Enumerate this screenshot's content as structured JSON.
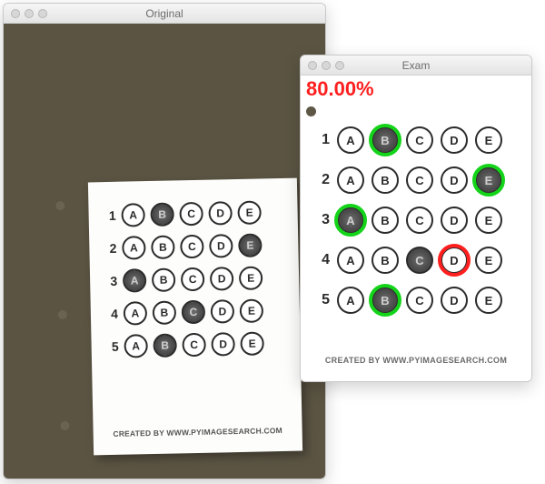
{
  "windows": {
    "original": {
      "title": "Original"
    },
    "exam": {
      "title": "Exam"
    }
  },
  "colors": {
    "original_bg": "#5b5443",
    "correct_ring": "#14d41a",
    "wrong_ring": "#ff1f1f",
    "score_color": "#ff1f1f",
    "bubble_border": "#2b2b2b",
    "bubble_fill": "#4d4d4d"
  },
  "options": [
    "A",
    "B",
    "C",
    "D",
    "E"
  ],
  "footer_text": "CREATED BY WWW.PYIMAGESEARCH.COM",
  "score_text": "80.00%",
  "sheet": {
    "rows": [
      {
        "num": "1",
        "filled": "B"
      },
      {
        "num": "2",
        "filled": "E"
      },
      {
        "num": "3",
        "filled": "A"
      },
      {
        "num": "4",
        "filled": "C"
      },
      {
        "num": "5",
        "filled": "B"
      }
    ]
  },
  "graded": {
    "rows": [
      {
        "num": "1",
        "filled": "B",
        "correct": "B",
        "mark": "correct"
      },
      {
        "num": "2",
        "filled": "E",
        "correct": "E",
        "mark": "correct"
      },
      {
        "num": "3",
        "filled": "A",
        "correct": "A",
        "mark": "correct"
      },
      {
        "num": "4",
        "filled": "C",
        "correct": "D",
        "mark": "wrong"
      },
      {
        "num": "5",
        "filled": "B",
        "correct": "B",
        "mark": "correct"
      }
    ]
  }
}
